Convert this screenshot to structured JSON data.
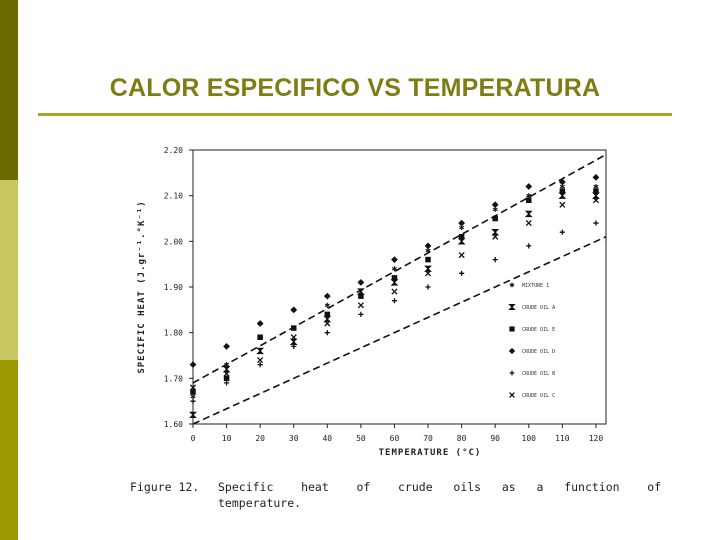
{
  "slide": {
    "title": "CALOR ESPECIFICO VS TEMPERATURA",
    "accent_colors": {
      "dark": "#6b6b00",
      "light": "#c8c860",
      "mid": "#9a9a00",
      "title": "#7d7d14"
    }
  },
  "figure": {
    "caption_label": "Figure 12.",
    "caption_line1": "Specific    heat    of    crude   oils   as   a   function    of",
    "caption_line2": "temperature."
  },
  "chart_data": {
    "type": "scatter",
    "xlabel": "TEMPERATURE (°C)",
    "ylabel": "SPECIFIC HEAT (J.gr⁻¹.°K⁻¹)",
    "xlim": [
      0,
      123
    ],
    "ylim": [
      1.6,
      2.2
    ],
    "xticks": [
      0,
      10,
      20,
      30,
      40,
      50,
      60,
      70,
      80,
      90,
      100,
      110,
      120
    ],
    "yticks": [
      1.6,
      1.7,
      1.8,
      1.9,
      2.0,
      2.1,
      2.2
    ],
    "ytick_labels": [
      "1.60",
      "1.70",
      "1.80",
      "1.90",
      "2.00",
      "2.10",
      "2.20"
    ],
    "grid": false,
    "legend_position": "right-inside",
    "bound_lines": [
      {
        "style": "dashed",
        "points": [
          [
            0,
            1.69
          ],
          [
            123,
            2.19
          ]
        ]
      },
      {
        "style": "dashed",
        "points": [
          [
            0,
            1.6
          ],
          [
            123,
            2.01
          ]
        ]
      }
    ],
    "series": [
      {
        "name": "MIXTURE 1",
        "marker": "asterisk",
        "points": [
          [
            0,
            1.66
          ],
          [
            10,
            1.73
          ],
          [
            20,
            1.79
          ],
          [
            30,
            1.85
          ],
          [
            40,
            1.86
          ],
          [
            50,
            1.91
          ],
          [
            60,
            1.94
          ],
          [
            70,
            1.98
          ],
          [
            80,
            2.03
          ],
          [
            90,
            2.07
          ],
          [
            100,
            2.1
          ],
          [
            110,
            2.12
          ],
          [
            120,
            2.12
          ]
        ]
      },
      {
        "name": "CRUDE OIL A",
        "marker": "hourglass",
        "points": [
          [
            0,
            1.62
          ],
          [
            10,
            1.72
          ],
          [
            20,
            1.76
          ],
          [
            30,
            1.78
          ],
          [
            40,
            1.83
          ],
          [
            50,
            1.89
          ],
          [
            60,
            1.91
          ],
          [
            70,
            1.94
          ],
          [
            80,
            2.0
          ],
          [
            90,
            2.02
          ],
          [
            100,
            2.06
          ],
          [
            110,
            2.1
          ],
          [
            120,
            2.1
          ]
        ]
      },
      {
        "name": "CRUDE OIL E",
        "marker": "square",
        "points": [
          [
            0,
            1.67
          ],
          [
            10,
            1.7
          ],
          [
            20,
            1.79
          ],
          [
            30,
            1.81
          ],
          [
            40,
            1.84
          ],
          [
            50,
            1.88
          ],
          [
            60,
            1.92
          ],
          [
            70,
            1.96
          ],
          [
            80,
            2.01
          ],
          [
            90,
            2.05
          ],
          [
            100,
            2.09
          ],
          [
            110,
            2.11
          ],
          [
            120,
            2.11
          ]
        ]
      },
      {
        "name": "CRUDE OIL D",
        "marker": "diamond",
        "points": [
          [
            0,
            1.73
          ],
          [
            10,
            1.77
          ],
          [
            20,
            1.82
          ],
          [
            30,
            1.85
          ],
          [
            40,
            1.88
          ],
          [
            50,
            1.91
          ],
          [
            60,
            1.96
          ],
          [
            70,
            1.99
          ],
          [
            80,
            2.04
          ],
          [
            90,
            2.08
          ],
          [
            100,
            2.12
          ],
          [
            110,
            2.13
          ],
          [
            120,
            2.14
          ]
        ]
      },
      {
        "name": "CRUDE OIL B",
        "marker": "plus",
        "points": [
          [
            0,
            1.65
          ],
          [
            10,
            1.69
          ],
          [
            20,
            1.73
          ],
          [
            30,
            1.77
          ],
          [
            40,
            1.8
          ],
          [
            50,
            1.84
          ],
          [
            60,
            1.87
          ],
          [
            70,
            1.9
          ],
          [
            80,
            1.93
          ],
          [
            90,
            1.96
          ],
          [
            100,
            1.99
          ],
          [
            110,
            2.02
          ],
          [
            120,
            2.04
          ]
        ]
      },
      {
        "name": "CRUDE OIL C",
        "marker": "x",
        "points": [
          [
            0,
            1.68
          ],
          [
            10,
            1.71
          ],
          [
            20,
            1.74
          ],
          [
            30,
            1.79
          ],
          [
            40,
            1.82
          ],
          [
            50,
            1.86
          ],
          [
            60,
            1.89
          ],
          [
            70,
            1.93
          ],
          [
            80,
            1.97
          ],
          [
            90,
            2.01
          ],
          [
            100,
            2.04
          ],
          [
            110,
            2.08
          ],
          [
            120,
            2.09
          ]
        ]
      }
    ]
  }
}
